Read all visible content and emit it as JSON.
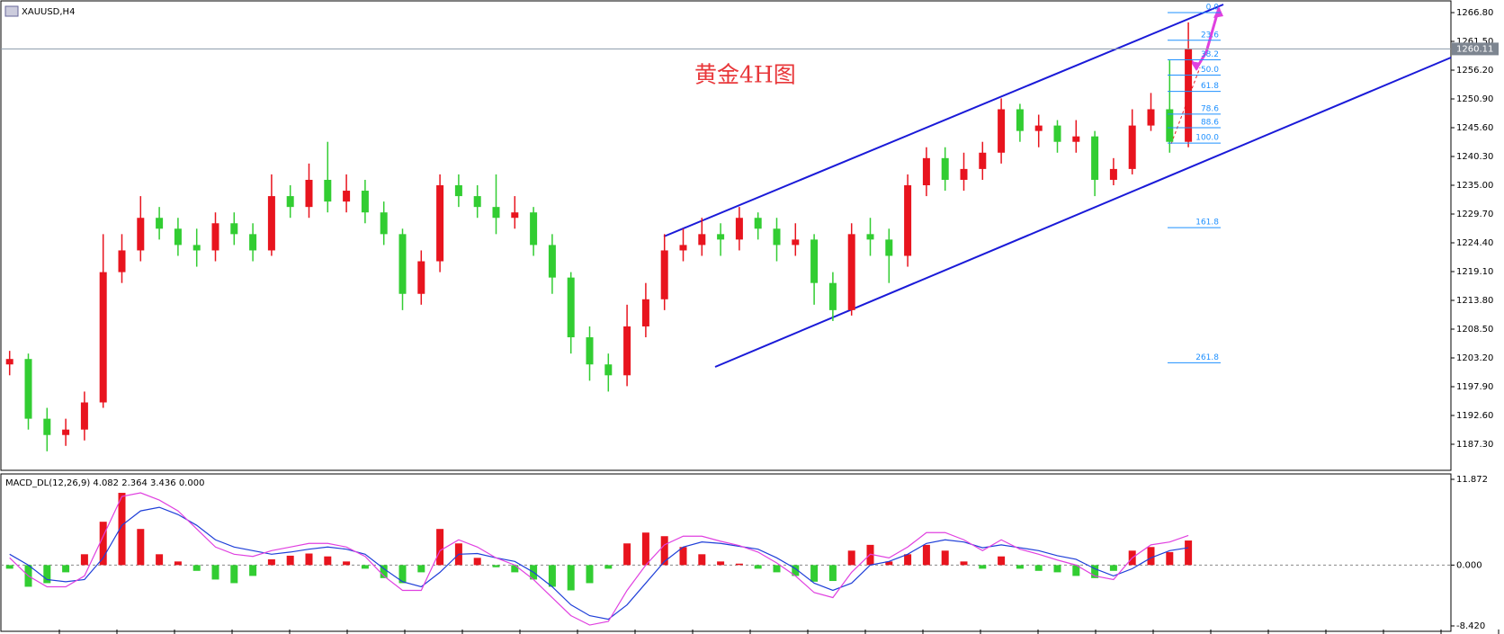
{
  "chart_data": [
    {
      "type": "candlestick",
      "title": "XAUUSD,H4",
      "annotation": "黄金4H图",
      "open": [
        1202,
        1203,
        1192,
        1189,
        1190,
        1195,
        1219,
        1223,
        1229,
        1227,
        1224,
        1223,
        1228,
        1226,
        1223,
        1233,
        1231,
        1236,
        1232,
        1234,
        1230,
        1226,
        1215,
        1221,
        1235,
        1233,
        1231,
        1229,
        1230,
        1224,
        1218,
        1207,
        1202,
        1200,
        1209,
        1214,
        1223,
        1224,
        1226,
        1225,
        1229,
        1227,
        1224,
        1225,
        1217,
        1212,
        1226,
        1225,
        1222,
        1235,
        1240,
        1236,
        1238,
        1241,
        1249,
        1245,
        1246,
        1243,
        1244,
        1236,
        1238,
        1246,
        1249,
        1243
      ],
      "high": [
        1204.5,
        1204,
        1194,
        1192,
        1197,
        1226,
        1226,
        1233,
        1231,
        1229,
        1227,
        1230,
        1230,
        1228,
        1237,
        1235,
        1239,
        1243,
        1237,
        1236,
        1232,
        1227,
        1223,
        1237,
        1237,
        1235,
        1237,
        1233,
        1231,
        1226,
        1219,
        1209,
        1204,
        1213,
        1217,
        1226,
        1227,
        1229,
        1228,
        1231,
        1230,
        1229,
        1228,
        1226,
        1219,
        1228,
        1229,
        1227,
        1237,
        1242,
        1242,
        1241,
        1243,
        1251,
        1250,
        1248,
        1247,
        1247,
        1245,
        1240,
        1249,
        1252,
        1258,
        1265
      ],
      "low": [
        1200,
        1190,
        1186,
        1187,
        1188,
        1194,
        1217,
        1221,
        1225,
        1222,
        1220,
        1221,
        1224,
        1221,
        1222,
        1229,
        1229,
        1230,
        1230,
        1228,
        1224,
        1212,
        1213,
        1219,
        1231,
        1229,
        1226,
        1227,
        1222,
        1215,
        1204,
        1199,
        1197,
        1198,
        1207,
        1212,
        1221,
        1222,
        1222,
        1223,
        1225,
        1221,
        1222,
        1213,
        1210,
        1211,
        1222,
        1217,
        1220,
        1233,
        1234,
        1234,
        1236,
        1239,
        1243,
        1242,
        1241,
        1241,
        1233,
        1235,
        1237,
        1245,
        1241,
        1242
      ],
      "close": [
        1203,
        1192,
        1189,
        1190,
        1195,
        1219,
        1223,
        1229,
        1227,
        1224,
        1223,
        1228,
        1226,
        1223,
        1233,
        1231,
        1236,
        1232,
        1234,
        1230,
        1226,
        1215,
        1221,
        1235,
        1233,
        1231,
        1229,
        1230,
        1224,
        1218,
        1207,
        1202,
        1200,
        1209,
        1214,
        1223,
        1224,
        1226,
        1225,
        1229,
        1227,
        1224,
        1225,
        1217,
        1212,
        1226,
        1225,
        1222,
        1235,
        1240,
        1236,
        1238,
        1241,
        1249,
        1245,
        1246,
        1243,
        1244,
        1236,
        1238,
        1246,
        1249,
        1243,
        1260.11
      ],
      "up_color": "#e8141e",
      "down_color": "#32cd32",
      "last_price": 1260.11,
      "fib_labels": [
        "0.0",
        "23.6",
        "38.2",
        "50.0",
        "61.8",
        "78.6",
        "88.6",
        "100.0",
        "161.8",
        "261.8"
      ],
      "fib_prices": [
        1266.8,
        1261.7,
        1258.1,
        1255.3,
        1252.3,
        1248.1,
        1245.6,
        1242.77,
        1227.2,
        1202.3
      ],
      "fib_color": "#1e90ff",
      "ylim": [
        1182.66,
        1268.46
      ],
      "yticks": [
        {
          "value": 1266.8,
          "label": "1266.80"
        },
        {
          "value": 1261.5,
          "label": "1261.50"
        },
        {
          "value": 1256.2,
          "label": "1256.20"
        },
        {
          "value": 1250.9,
          "label": "1250.90"
        },
        {
          "value": 1245.6,
          "label": "1245.60"
        },
        {
          "value": 1240.3,
          "label": "1240.30"
        },
        {
          "value": 1235,
          "label": "1235.00"
        },
        {
          "value": 1229.7,
          "label": "1229.70"
        },
        {
          "value": 1224.4,
          "label": "1224.40"
        },
        {
          "value": 1219.1,
          "label": "1219.10"
        },
        {
          "value": 1213.8,
          "label": "1213.80"
        },
        {
          "value": 1208.5,
          "label": "1208.50"
        },
        {
          "value": 1203.2,
          "label": "1203.20"
        },
        {
          "value": 1197.9,
          "label": "1197.90"
        },
        {
          "value": 1192.6,
          "label": "1192.60"
        },
        {
          "value": 1187.3,
          "label": "1187.30"
        }
      ]
    },
    {
      "type": "macd",
      "title": "MACD_DL(12,26,9) 4.082 2.364 3.436 0.000",
      "histogram": [
        -0.5,
        -3,
        -2.5,
        -1,
        1.5,
        6,
        10,
        5,
        1.5,
        0.5,
        -0.8,
        -2,
        -2.5,
        -1.5,
        0.8,
        1.3,
        1.6,
        1.2,
        0.5,
        -0.5,
        -1.8,
        -2.5,
        -1,
        5,
        3,
        1,
        -0.3,
        -1,
        -2,
        -3,
        -3.5,
        -2.5,
        -0.5,
        3,
        4.5,
        4,
        2.5,
        1.5,
        0.5,
        0.2,
        -0.5,
        -1,
        -1.5,
        -2.3,
        -2.2,
        2,
        2.8,
        0.5,
        1.5,
        2.8,
        2,
        0.5,
        -0.5,
        1.2,
        -0.5,
        -0.8,
        -1,
        -1.5,
        -1.8,
        -0.8,
        2,
        2.5,
        1.8,
        3.4
      ],
      "main": [
        1.5,
        0,
        -2,
        -2.3,
        -2,
        1,
        5.5,
        7.5,
        8,
        7,
        5.5,
        3.5,
        2.5,
        2,
        1.5,
        1.8,
        2.2,
        2.5,
        2.2,
        1.5,
        -0.5,
        -2.3,
        -3,
        -1,
        1.5,
        1.6,
        1,
        0.5,
        -1,
        -3,
        -5.5,
        -7,
        -7.5,
        -5.5,
        -2.5,
        0.5,
        2.5,
        3.2,
        3,
        2.6,
        2.2,
        1,
        -0.5,
        -2.5,
        -3.5,
        -2.5,
        0,
        0.5,
        1.5,
        3,
        3.5,
        3.2,
        2.4,
        2.8,
        2.4,
        2,
        1.3,
        0.8,
        -0.5,
        -1.5,
        -0.5,
        1,
        2,
        2.4
      ],
      "signal": [
        1,
        -1.5,
        -3,
        -3,
        -1.5,
        4,
        9.5,
        10,
        9,
        7.5,
        5,
        2.5,
        1.5,
        1.2,
        2,
        2.5,
        3,
        3,
        2.5,
        1.2,
        -1.5,
        -3.5,
        -3.5,
        2,
        3.5,
        2.5,
        1,
        0,
        -2,
        -4.5,
        -7,
        -8.3,
        -7.8,
        -3.5,
        0,
        2.8,
        4,
        4,
        3.3,
        2.7,
        1.8,
        0.3,
        -1.5,
        -3.8,
        -4.5,
        -1,
        1.5,
        1,
        2.5,
        4.5,
        4.5,
        3.5,
        2,
        3.5,
        2.2,
        1.5,
        0.7,
        0,
        -1.5,
        -2,
        1,
        2.8,
        3.2,
        4.1
      ],
      "up_color": "#e8141e",
      "down_color": "#32cd32",
      "main_color": "#1f3fd8",
      "signal_color": "#e040e0",
      "zero_line": true,
      "ylim": [
        -8.42,
        11.872
      ],
      "yticks": [
        11.872,
        {
          "value": 0,
          "label": "0.000"
        },
        {
          "value": -8.42,
          "label": "-8.420"
        }
      ]
    }
  ]
}
